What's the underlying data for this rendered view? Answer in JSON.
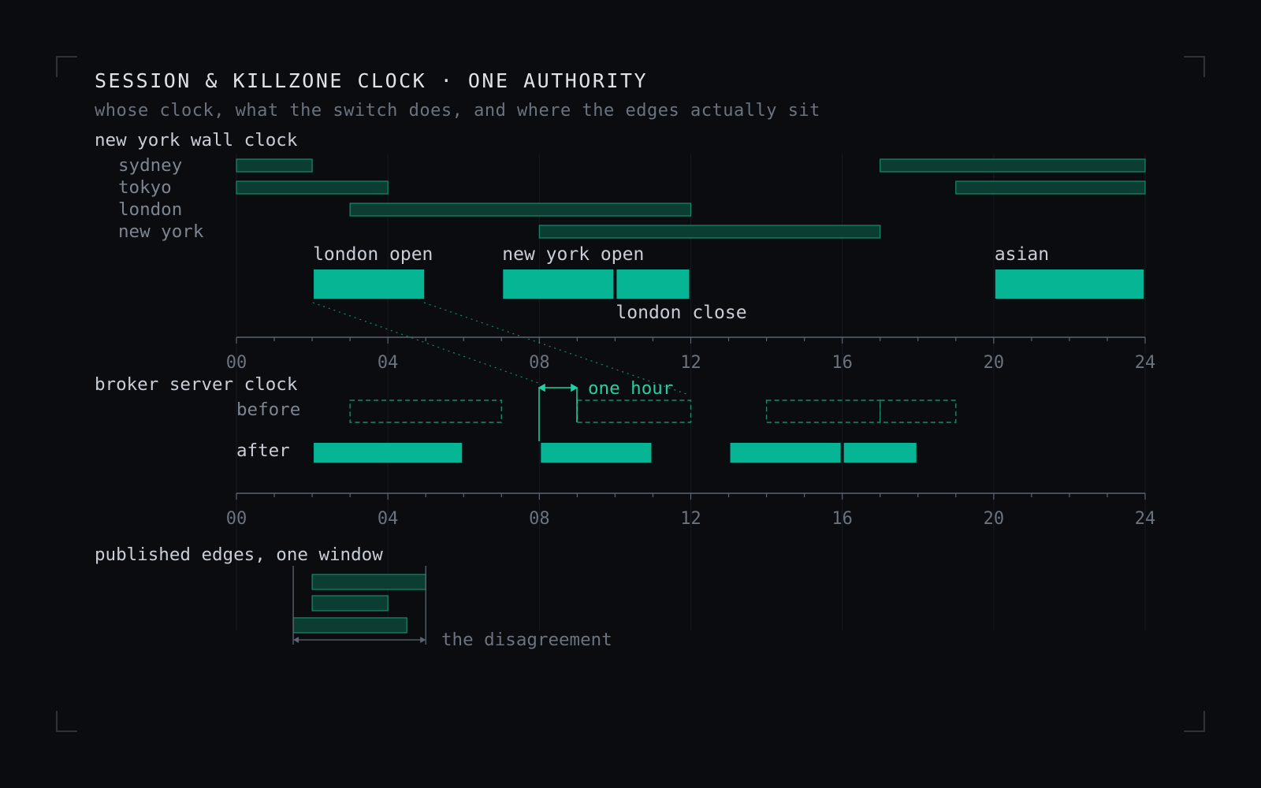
{
  "header": {
    "title": "SESSION & KILLZONE CLOCK · ONE AUTHORITY",
    "subtitle": "whose clock, what the switch does, and where the edges actually sit"
  },
  "colors": {
    "background": "#0a0c10",
    "accent": "#06b593",
    "accent_bright": "#22d1a3",
    "session_fill": "#0b3d33",
    "session_stroke": "#178a6c",
    "axis": "#5d6570",
    "text_muted": "#6b737e"
  },
  "ny_panel": {
    "label": "new york wall clock",
    "sessions": [
      {
        "name": "sydney",
        "ranges": [
          [
            0,
            2
          ],
          [
            17,
            24
          ]
        ]
      },
      {
        "name": "tokyo",
        "ranges": [
          [
            0,
            4
          ],
          [
            19,
            24
          ]
        ]
      },
      {
        "name": "london",
        "ranges": [
          [
            3,
            12
          ]
        ]
      },
      {
        "name": "new york",
        "ranges": [
          [
            8,
            17
          ]
        ]
      }
    ],
    "killzones": [
      {
        "name": "london open",
        "start": 2,
        "end": 5
      },
      {
        "name": "new york open",
        "start": 7,
        "end": 10
      },
      {
        "name": "london close",
        "start": 10,
        "end": 12
      },
      {
        "name": "asian",
        "start": 20,
        "end": 24
      }
    ]
  },
  "axis_ticks": [
    "00",
    "04",
    "08",
    "12",
    "16",
    "20",
    "24"
  ],
  "broker_panel": {
    "label": "broker server clock",
    "before_label": "before",
    "after_label": "after",
    "before_ranges": [
      [
        3,
        7
      ],
      [
        9,
        12
      ],
      [
        14,
        17
      ],
      [
        17,
        19
      ]
    ],
    "after_ranges": [
      [
        2,
        6
      ],
      [
        8,
        11
      ],
      [
        13,
        16
      ],
      [
        16,
        18
      ]
    ],
    "shift_label": "one hour"
  },
  "edges_panel": {
    "label": "published edges, one window",
    "windows": [
      [
        2,
        5
      ],
      [
        2,
        4
      ],
      [
        1.5,
        4.5
      ]
    ],
    "span": [
      1.5,
      5
    ],
    "note": "the disagreement"
  }
}
